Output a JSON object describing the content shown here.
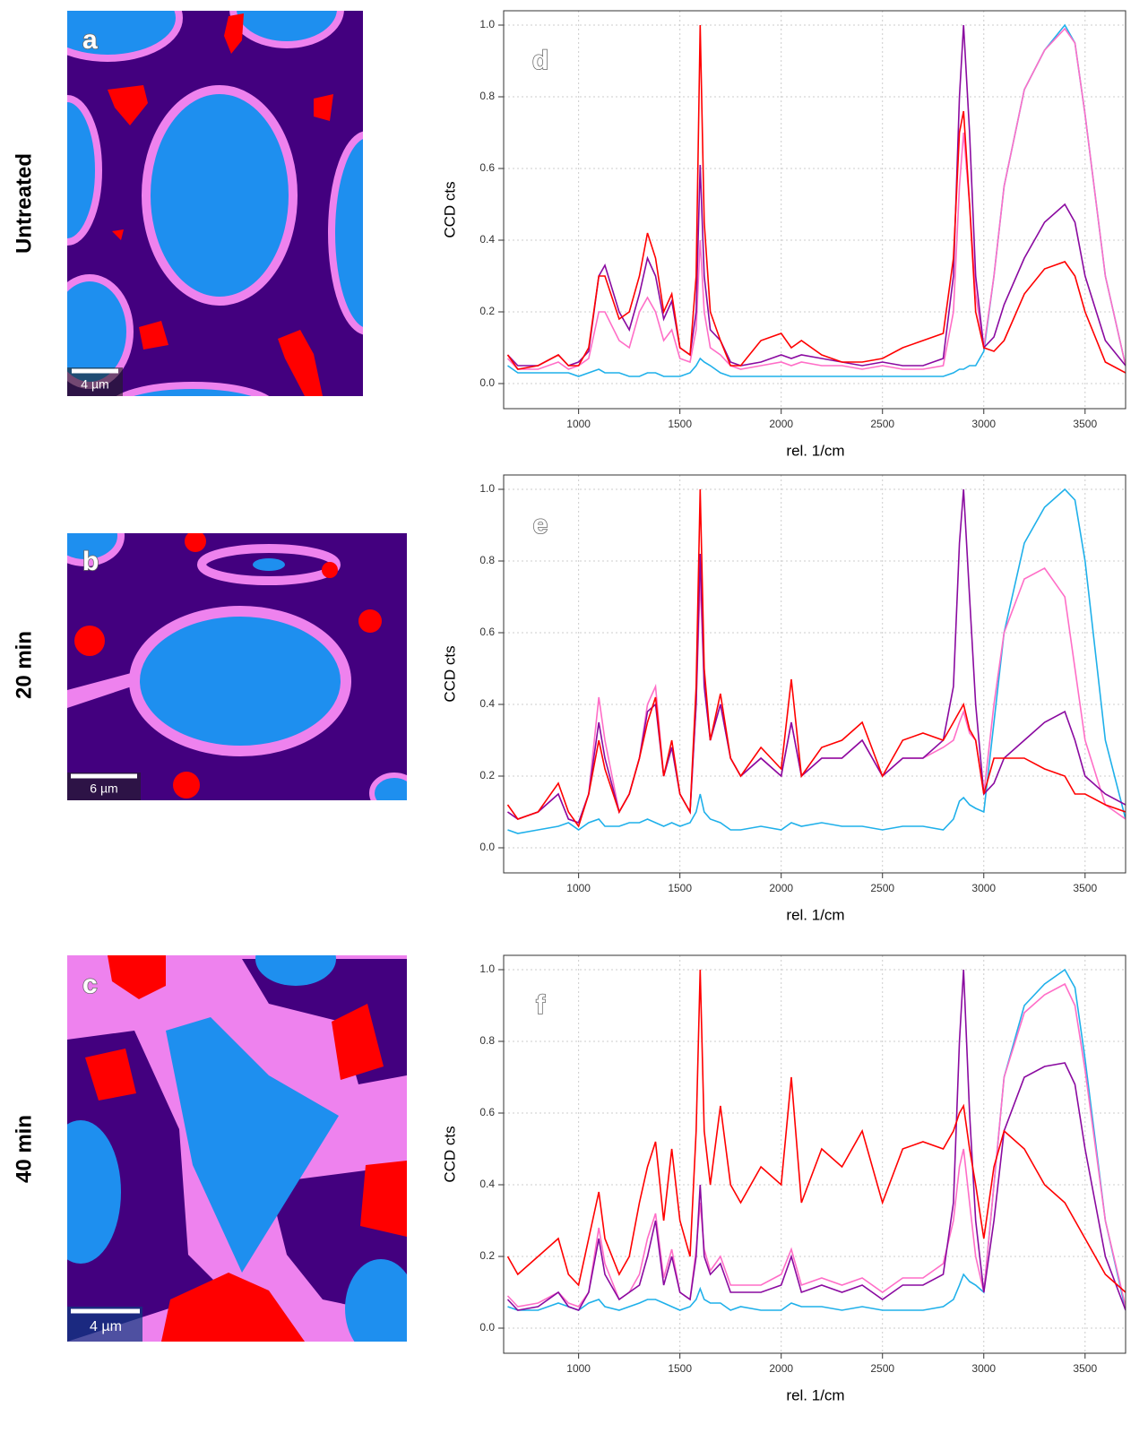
{
  "row_labels": [
    "Untreated",
    "20 min",
    "40 min"
  ],
  "images": [
    {
      "label": "a",
      "scale_bar": "4 µm"
    },
    {
      "label": "b",
      "scale_bar": "6 µm"
    },
    {
      "label": "c",
      "scale_bar": "4 µm"
    }
  ],
  "chart_data": [
    {
      "type": "line",
      "panel_label": "d",
      "xlabel": "rel. 1/cm",
      "ylabel": "CCD cts",
      "grid": true,
      "xlim": [
        630,
        3700
      ],
      "ylim": [
        -0.07,
        1.04
      ],
      "xticks": [
        1000,
        1500,
        2000,
        2500,
        3000,
        3500
      ],
      "yticks": [
        {
          "value": 0,
          "label": "0.0"
        },
        {
          "value": 0.2,
          "label": "0.2"
        },
        {
          "value": 0.4,
          "label": "0.4"
        },
        {
          "value": 0.6,
          "label": "0.6"
        },
        {
          "value": 0.8,
          "label": "0.8"
        },
        {
          "value": 1,
          "label": "1.0"
        }
      ],
      "x": [
        650,
        700,
        800,
        900,
        950,
        1000,
        1050,
        1100,
        1130,
        1200,
        1250,
        1300,
        1340,
        1380,
        1420,
        1460,
        1500,
        1550,
        1580,
        1600,
        1620,
        1650,
        1700,
        1750,
        1800,
        1900,
        2000,
        2050,
        2100,
        2200,
        2300,
        2400,
        2500,
        2600,
        2700,
        2800,
        2850,
        2880,
        2900,
        2930,
        2960,
        3000,
        3050,
        3100,
        3200,
        3300,
        3400,
        3450,
        3500,
        3600,
        3700
      ],
      "series": [
        {
          "color": "#1fb0ea",
          "values": [
            0.05,
            0.03,
            0.03,
            0.03,
            0.03,
            0.02,
            0.03,
            0.04,
            0.03,
            0.03,
            0.02,
            0.02,
            0.03,
            0.03,
            0.02,
            0.02,
            0.02,
            0.03,
            0.05,
            0.07,
            0.06,
            0.05,
            0.03,
            0.02,
            0.02,
            0.02,
            0.02,
            0.02,
            0.02,
            0.02,
            0.02,
            0.02,
            0.02,
            0.02,
            0.02,
            0.02,
            0.03,
            0.04,
            0.04,
            0.05,
            0.05,
            0.09,
            0.3,
            0.55,
            0.82,
            0.93,
            1.0,
            0.95,
            0.75,
            0.3,
            0.05
          ]
        },
        {
          "color": "#ff6ec7",
          "values": [
            0.07,
            0.04,
            0.04,
            0.06,
            0.04,
            0.05,
            0.07,
            0.2,
            0.2,
            0.12,
            0.1,
            0.2,
            0.24,
            0.2,
            0.12,
            0.15,
            0.07,
            0.06,
            0.15,
            0.4,
            0.2,
            0.1,
            0.08,
            0.05,
            0.04,
            0.05,
            0.06,
            0.05,
            0.06,
            0.05,
            0.05,
            0.04,
            0.05,
            0.04,
            0.04,
            0.05,
            0.2,
            0.55,
            0.7,
            0.5,
            0.25,
            0.1,
            0.3,
            0.55,
            0.82,
            0.93,
            0.99,
            0.95,
            0.75,
            0.3,
            0.05
          ]
        },
        {
          "color": "#8a0aa0",
          "values": [
            0.08,
            0.05,
            0.05,
            0.08,
            0.05,
            0.06,
            0.09,
            0.3,
            0.33,
            0.2,
            0.15,
            0.25,
            0.35,
            0.3,
            0.18,
            0.23,
            0.1,
            0.08,
            0.2,
            0.61,
            0.3,
            0.15,
            0.12,
            0.06,
            0.05,
            0.06,
            0.08,
            0.07,
            0.08,
            0.07,
            0.06,
            0.05,
            0.06,
            0.05,
            0.05,
            0.07,
            0.3,
            0.8,
            1.0,
            0.7,
            0.3,
            0.1,
            0.13,
            0.22,
            0.35,
            0.45,
            0.5,
            0.45,
            0.3,
            0.12,
            0.05
          ]
        },
        {
          "color": "#ff0000",
          "values": [
            0.08,
            0.04,
            0.05,
            0.08,
            0.05,
            0.05,
            0.1,
            0.3,
            0.3,
            0.18,
            0.2,
            0.3,
            0.42,
            0.35,
            0.2,
            0.25,
            0.1,
            0.08,
            0.3,
            1.0,
            0.45,
            0.2,
            0.12,
            0.05,
            0.05,
            0.12,
            0.14,
            0.1,
            0.12,
            0.08,
            0.06,
            0.06,
            0.07,
            0.1,
            0.12,
            0.14,
            0.35,
            0.7,
            0.76,
            0.5,
            0.2,
            0.1,
            0.09,
            0.12,
            0.25,
            0.32,
            0.34,
            0.3,
            0.2,
            0.06,
            0.03
          ]
        }
      ]
    },
    {
      "type": "line",
      "panel_label": "e",
      "xlabel": "rel. 1/cm",
      "ylabel": "CCD cts",
      "grid": true,
      "xlim": [
        630,
        3700
      ],
      "ylim": [
        -0.07,
        1.04
      ],
      "xticks": [
        1000,
        1500,
        2000,
        2500,
        3000,
        3500
      ],
      "yticks": [
        {
          "value": 0,
          "label": "0.0"
        },
        {
          "value": 0.2,
          "label": "0.2"
        },
        {
          "value": 0.4,
          "label": "0.4"
        },
        {
          "value": 0.6,
          "label": "0.6"
        },
        {
          "value": 0.8,
          "label": "0.8"
        },
        {
          "value": 1,
          "label": "1.0"
        }
      ],
      "x": [
        650,
        700,
        800,
        900,
        950,
        1000,
        1050,
        1100,
        1130,
        1200,
        1250,
        1300,
        1340,
        1380,
        1420,
        1460,
        1500,
        1550,
        1580,
        1600,
        1620,
        1650,
        1700,
        1750,
        1800,
        1900,
        2000,
        2050,
        2100,
        2200,
        2300,
        2400,
        2500,
        2600,
        2700,
        2800,
        2850,
        2880,
        2900,
        2930,
        2960,
        3000,
        3050,
        3100,
        3200,
        3300,
        3400,
        3450,
        3500,
        3600,
        3700
      ],
      "series": [
        {
          "color": "#1fb0ea",
          "values": [
            0.05,
            0.04,
            0.05,
            0.06,
            0.07,
            0.05,
            0.07,
            0.08,
            0.06,
            0.06,
            0.07,
            0.07,
            0.08,
            0.07,
            0.06,
            0.07,
            0.06,
            0.07,
            0.1,
            0.15,
            0.1,
            0.08,
            0.07,
            0.05,
            0.05,
            0.06,
            0.05,
            0.07,
            0.06,
            0.07,
            0.06,
            0.06,
            0.05,
            0.06,
            0.06,
            0.05,
            0.08,
            0.13,
            0.14,
            0.12,
            0.11,
            0.1,
            0.35,
            0.6,
            0.85,
            0.95,
            1.0,
            0.97,
            0.8,
            0.3,
            0.08
          ]
        },
        {
          "color": "#ff6ec7",
          "values": [
            0.1,
            0.08,
            0.1,
            0.15,
            0.08,
            0.07,
            0.15,
            0.42,
            0.3,
            0.1,
            0.15,
            0.25,
            0.4,
            0.45,
            0.2,
            0.28,
            0.15,
            0.1,
            0.4,
            0.75,
            0.45,
            0.3,
            0.4,
            0.25,
            0.2,
            0.25,
            0.2,
            0.35,
            0.2,
            0.25,
            0.25,
            0.3,
            0.2,
            0.25,
            0.25,
            0.28,
            0.3,
            0.35,
            0.38,
            0.32,
            0.3,
            0.15,
            0.4,
            0.6,
            0.75,
            0.78,
            0.7,
            0.5,
            0.3,
            0.12,
            0.08
          ]
        },
        {
          "color": "#8a0aa0",
          "values": [
            0.1,
            0.08,
            0.1,
            0.15,
            0.08,
            0.07,
            0.15,
            0.35,
            0.25,
            0.1,
            0.15,
            0.25,
            0.38,
            0.4,
            0.2,
            0.28,
            0.15,
            0.1,
            0.4,
            0.82,
            0.45,
            0.3,
            0.4,
            0.25,
            0.2,
            0.25,
            0.2,
            0.35,
            0.2,
            0.25,
            0.25,
            0.3,
            0.2,
            0.25,
            0.25,
            0.3,
            0.45,
            0.85,
            1.0,
            0.7,
            0.4,
            0.15,
            0.18,
            0.25,
            0.3,
            0.35,
            0.38,
            0.3,
            0.2,
            0.15,
            0.12
          ]
        },
        {
          "color": "#ff0000",
          "values": [
            0.12,
            0.08,
            0.1,
            0.18,
            0.1,
            0.06,
            0.15,
            0.3,
            0.22,
            0.1,
            0.15,
            0.25,
            0.35,
            0.42,
            0.2,
            0.3,
            0.15,
            0.1,
            0.45,
            1.0,
            0.5,
            0.3,
            0.43,
            0.25,
            0.2,
            0.28,
            0.22,
            0.47,
            0.2,
            0.28,
            0.3,
            0.35,
            0.2,
            0.3,
            0.32,
            0.3,
            0.35,
            0.38,
            0.4,
            0.33,
            0.3,
            0.15,
            0.25,
            0.25,
            0.25,
            0.22,
            0.2,
            0.15,
            0.15,
            0.12,
            0.1
          ]
        }
      ]
    },
    {
      "type": "line",
      "panel_label": "f",
      "xlabel": "rel. 1/cm",
      "ylabel": "CCD cts",
      "grid": true,
      "xlim": [
        630,
        3700
      ],
      "ylim": [
        -0.07,
        1.04
      ],
      "xticks": [
        1000,
        1500,
        2000,
        2500,
        3000,
        3500
      ],
      "yticks": [
        {
          "value": 0,
          "label": "0.0"
        },
        {
          "value": 0.2,
          "label": "0.2"
        },
        {
          "value": 0.4,
          "label": "0.4"
        },
        {
          "value": 0.6,
          "label": "0.6"
        },
        {
          "value": 0.8,
          "label": "0.8"
        },
        {
          "value": 1,
          "label": "1.0"
        }
      ],
      "x": [
        650,
        700,
        800,
        900,
        950,
        1000,
        1050,
        1100,
        1130,
        1200,
        1250,
        1300,
        1340,
        1380,
        1420,
        1460,
        1500,
        1550,
        1580,
        1600,
        1620,
        1650,
        1700,
        1750,
        1800,
        1900,
        2000,
        2050,
        2100,
        2200,
        2300,
        2400,
        2500,
        2600,
        2700,
        2800,
        2850,
        2880,
        2900,
        2930,
        2960,
        3000,
        3050,
        3100,
        3200,
        3300,
        3400,
        3450,
        3500,
        3600,
        3700
      ],
      "series": [
        {
          "color": "#1fb0ea",
          "values": [
            0.06,
            0.05,
            0.05,
            0.07,
            0.06,
            0.05,
            0.07,
            0.08,
            0.06,
            0.05,
            0.06,
            0.07,
            0.08,
            0.08,
            0.07,
            0.06,
            0.05,
            0.06,
            0.08,
            0.11,
            0.08,
            0.07,
            0.07,
            0.05,
            0.06,
            0.05,
            0.05,
            0.07,
            0.06,
            0.06,
            0.05,
            0.06,
            0.05,
            0.05,
            0.05,
            0.06,
            0.08,
            0.12,
            0.15,
            0.13,
            0.12,
            0.1,
            0.4,
            0.7,
            0.9,
            0.96,
            1.0,
            0.95,
            0.75,
            0.3,
            0.05
          ]
        },
        {
          "color": "#ff6ec7",
          "values": [
            0.09,
            0.06,
            0.07,
            0.1,
            0.07,
            0.06,
            0.1,
            0.28,
            0.18,
            0.08,
            0.1,
            0.15,
            0.25,
            0.32,
            0.14,
            0.22,
            0.1,
            0.08,
            0.22,
            0.35,
            0.22,
            0.16,
            0.2,
            0.12,
            0.12,
            0.12,
            0.15,
            0.22,
            0.12,
            0.14,
            0.12,
            0.14,
            0.1,
            0.14,
            0.14,
            0.18,
            0.3,
            0.45,
            0.5,
            0.35,
            0.2,
            0.1,
            0.4,
            0.7,
            0.88,
            0.93,
            0.96,
            0.9,
            0.72,
            0.3,
            0.06
          ]
        },
        {
          "color": "#8a0aa0",
          "values": [
            0.08,
            0.05,
            0.06,
            0.1,
            0.06,
            0.05,
            0.1,
            0.25,
            0.15,
            0.08,
            0.1,
            0.12,
            0.2,
            0.3,
            0.12,
            0.2,
            0.1,
            0.08,
            0.2,
            0.4,
            0.2,
            0.15,
            0.18,
            0.1,
            0.1,
            0.1,
            0.12,
            0.2,
            0.1,
            0.12,
            0.1,
            0.12,
            0.08,
            0.12,
            0.12,
            0.15,
            0.35,
            0.8,
            1.0,
            0.6,
            0.3,
            0.1,
            0.3,
            0.55,
            0.7,
            0.73,
            0.74,
            0.68,
            0.5,
            0.2,
            0.05
          ]
        },
        {
          "color": "#ff0000",
          "values": [
            0.2,
            0.15,
            0.2,
            0.25,
            0.15,
            0.12,
            0.25,
            0.38,
            0.25,
            0.15,
            0.2,
            0.35,
            0.45,
            0.52,
            0.3,
            0.5,
            0.3,
            0.2,
            0.55,
            1.0,
            0.55,
            0.4,
            0.62,
            0.4,
            0.35,
            0.45,
            0.4,
            0.7,
            0.35,
            0.5,
            0.45,
            0.55,
            0.35,
            0.5,
            0.52,
            0.5,
            0.55,
            0.6,
            0.62,
            0.5,
            0.4,
            0.25,
            0.45,
            0.55,
            0.5,
            0.4,
            0.35,
            0.3,
            0.25,
            0.15,
            0.1
          ]
        }
      ]
    }
  ]
}
